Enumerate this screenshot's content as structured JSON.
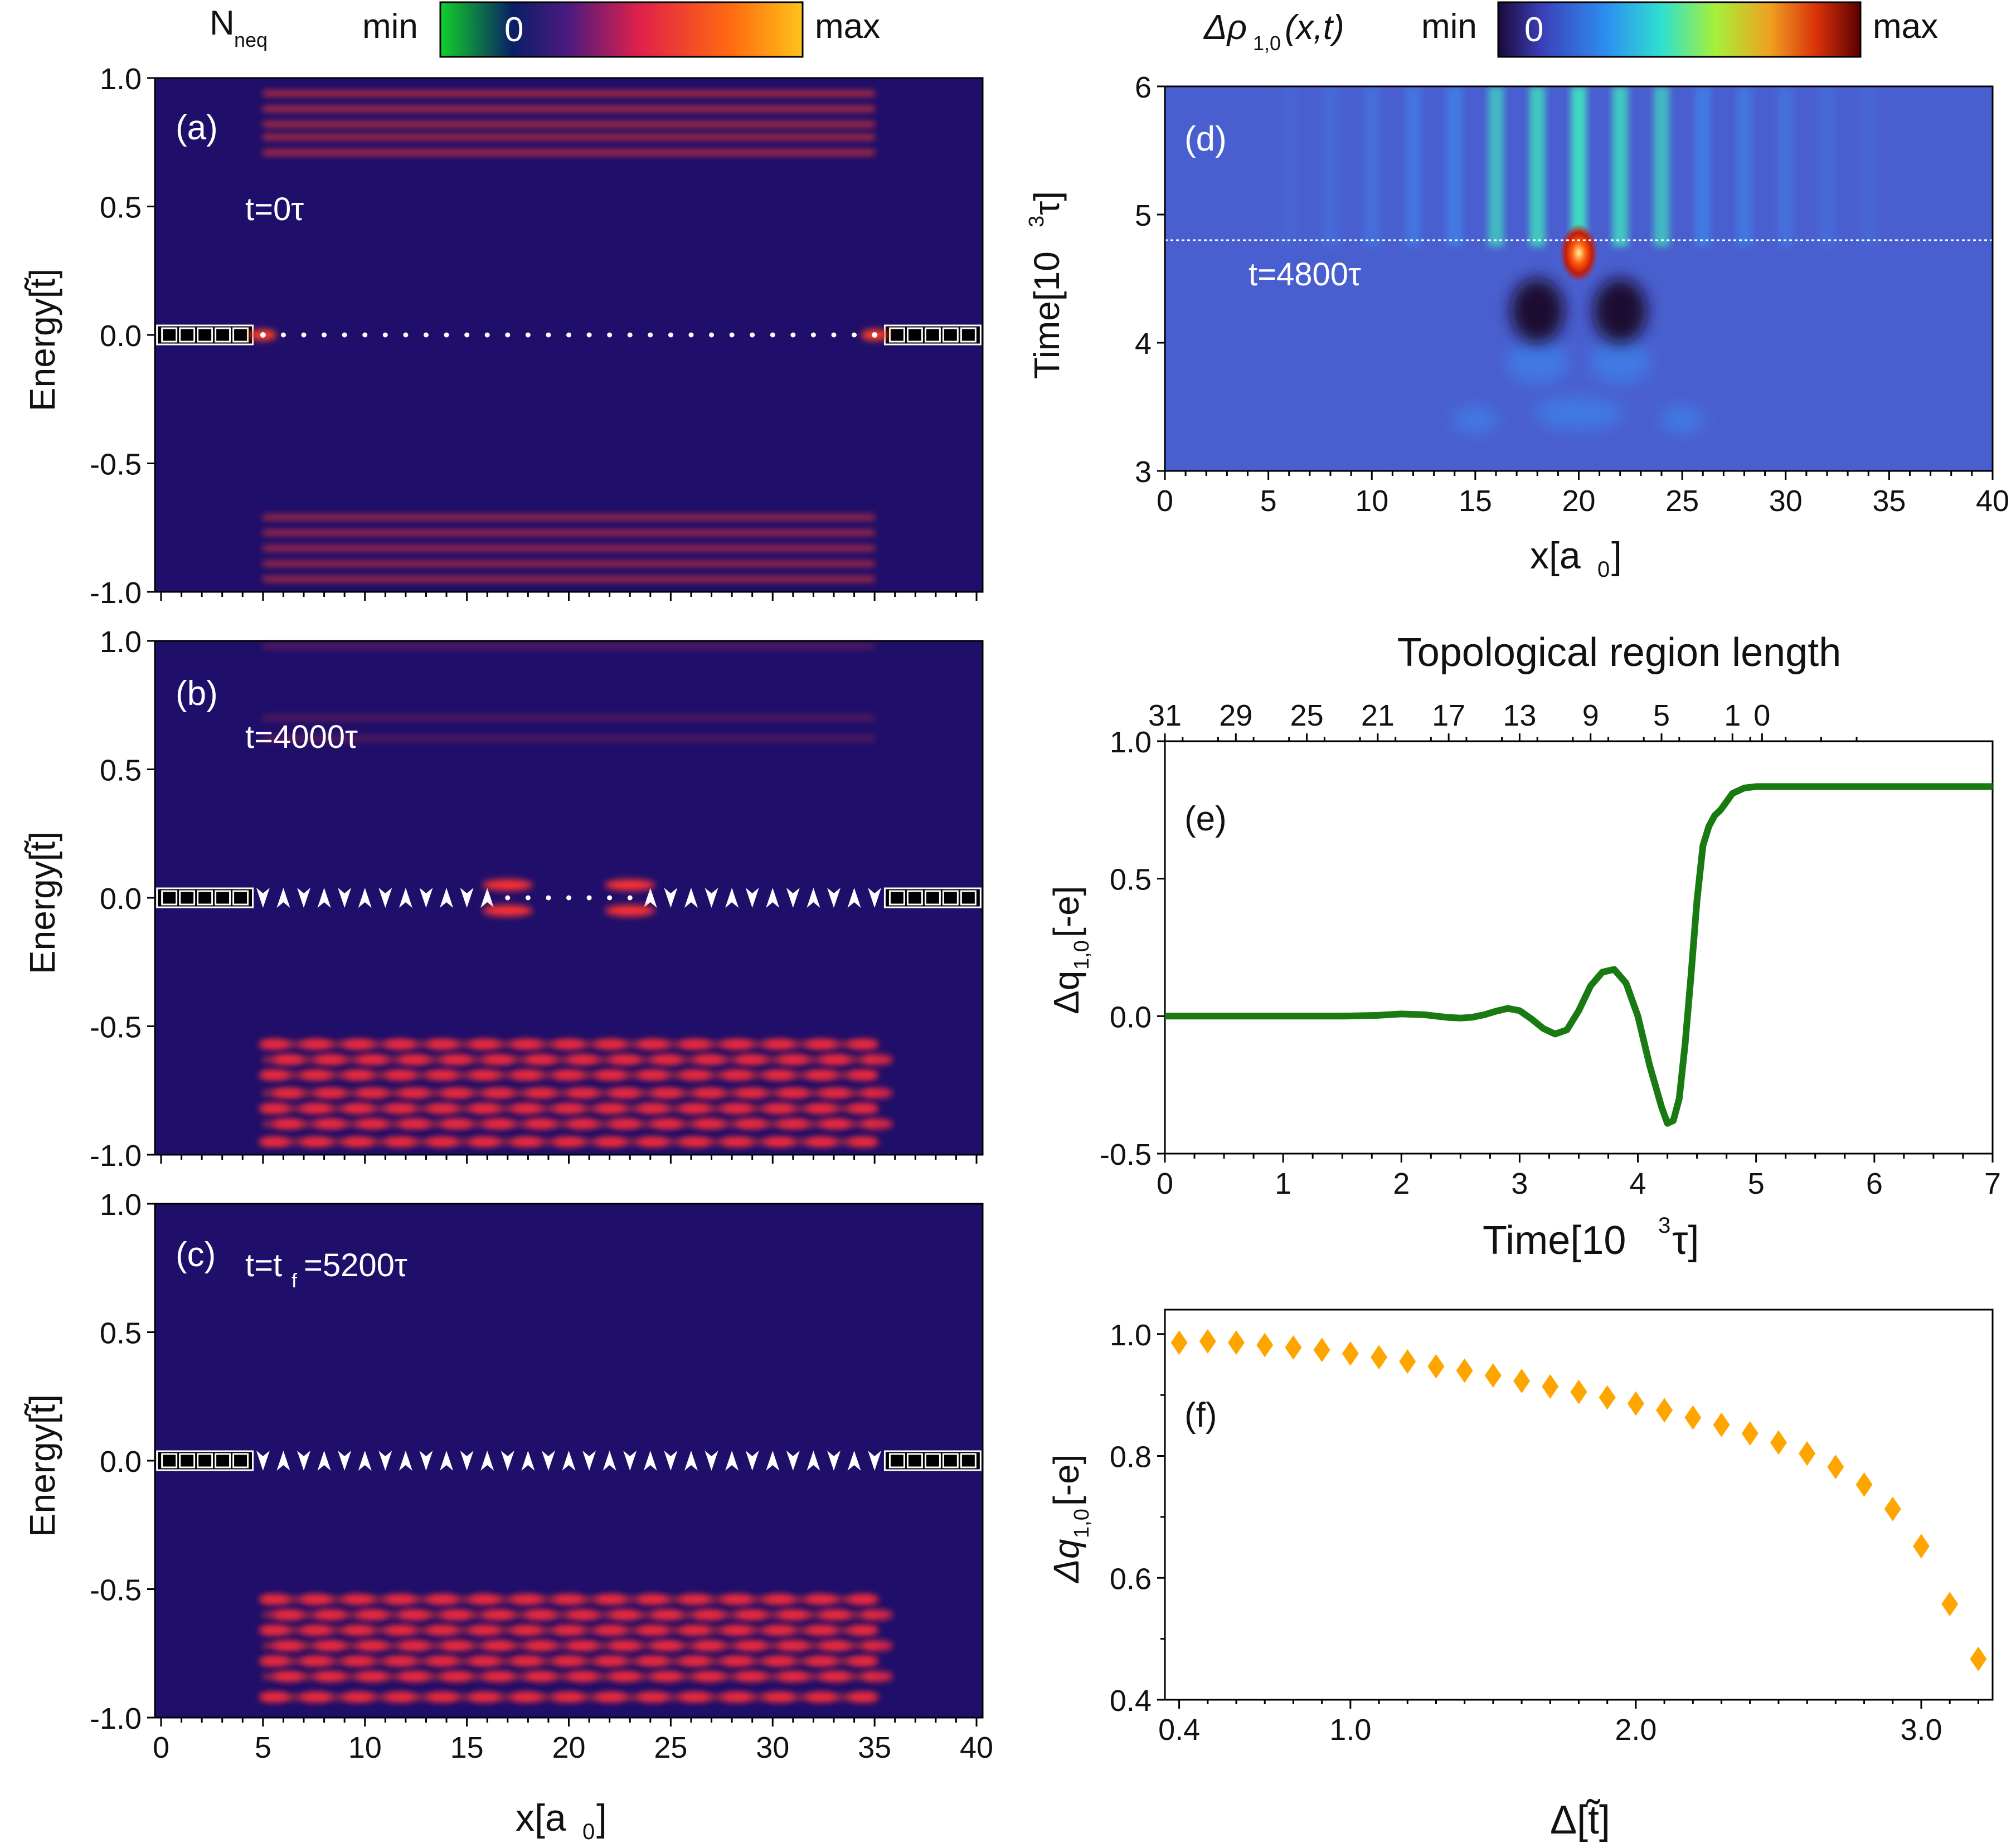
{
  "colors": {
    "bg": "#1f0f6a",
    "band": "#ff3a2a",
    "green": "#1a7a12",
    "orange": "#ffa500",
    "d_bg": "#4a5fcf"
  },
  "colorbar_left": {
    "label": "N",
    "label_sub": "neq",
    "min": "min",
    "zero": "0",
    "max": "max"
  },
  "colorbar_right": {
    "label": "Δρ",
    "label_sub": "1,0",
    "label_tail": "(x,t)",
    "min": "min",
    "zero": "0",
    "max": "max"
  },
  "panels_abc": {
    "xlabel": "x[a",
    "xlabel_sub": "0",
    "xlabel_tail": "]",
    "ylabel": "Energy[t̃]",
    "xticks": [
      "0",
      "5",
      "10",
      "15",
      "20",
      "25",
      "30",
      "35",
      "40"
    ],
    "yticks": [
      "1.0",
      "0.5",
      "0.0",
      "-0.5",
      "-1.0"
    ],
    "a": {
      "tag": "(a)",
      "time": "t=0τ"
    },
    "b": {
      "tag": "(b)",
      "time": "t=4000τ"
    },
    "c": {
      "tag": "(c)",
      "time_pre": "t=t",
      "time_sub": "f",
      "time_post": "=5200τ"
    }
  },
  "chart_data": [
    {
      "id": "a",
      "type": "heatmap",
      "title": "t=0τ",
      "xlabel": "x[a0]",
      "ylabel": "Energy[t̃]",
      "xlim": [
        0,
        40
      ],
      "ylim": [
        -1,
        1
      ],
      "bands_upper": [
        0.94,
        0.88,
        0.82,
        0.77,
        0.71
      ],
      "bands_lower": [
        -0.71,
        -0.77,
        -0.83,
        -0.89,
        -0.95
      ],
      "band_xrange": [
        5,
        35
      ],
      "edge_modes": [
        5,
        35
      ]
    },
    {
      "id": "b",
      "type": "heatmap",
      "title": "t=4000τ",
      "xlabel": "x[a0]",
      "ylabel": "Energy[t̃]",
      "xlim": [
        0,
        40
      ],
      "ylim": [
        -1,
        1
      ],
      "bands_upper": [
        0.98,
        0.7,
        0.62
      ],
      "bands_lower": [
        -0.57,
        -0.63,
        -0.69,
        -0.76,
        -0.82,
        -0.88,
        -0.95
      ],
      "band_xrange": [
        5,
        35
      ],
      "zero_modes": [
        17,
        23
      ]
    },
    {
      "id": "c",
      "type": "heatmap",
      "title": "t=tf=5200τ",
      "xlabel": "x[a0]",
      "ylabel": "Energy[t̃]",
      "xlim": [
        0,
        40
      ],
      "ylim": [
        -1,
        1
      ],
      "bands_lower": [
        -0.54,
        -0.6,
        -0.66,
        -0.72,
        -0.78,
        -0.84,
        -0.92
      ],
      "band_xrange": [
        5,
        35
      ]
    },
    {
      "id": "d",
      "type": "heatmap",
      "tag": "(d)",
      "annotation": "t=4800τ",
      "xlabel": "x[a0]",
      "ylabel": "Time[10^3τ]",
      "xlim": [
        0,
        40
      ],
      "ylim": [
        3,
        6
      ],
      "xticks": [
        "0",
        "5",
        "10",
        "15",
        "20",
        "25",
        "30",
        "35",
        "40"
      ],
      "yticks": [
        "3",
        "4",
        "5",
        "6"
      ],
      "line_t": 4.8,
      "peak": {
        "x": 20,
        "t": 4.7
      },
      "dips": [
        {
          "x": 18,
          "t": 4.25
        },
        {
          "x": 22,
          "t": 4.25
        }
      ]
    },
    {
      "id": "e",
      "type": "line",
      "tag": "(e)",
      "xlabel": "Time[10^3τ]",
      "ylabel": "Δq1,0[-e]",
      "top_axis_label": "Topological region length",
      "xlim": [
        0,
        7
      ],
      "ylim": [
        -0.5,
        1.0
      ],
      "top_ticks": [
        {
          "label": "31",
          "t": 0.0
        },
        {
          "label": "29",
          "t": 0.6
        },
        {
          "label": "25",
          "t": 1.2
        },
        {
          "label": "21",
          "t": 1.8
        },
        {
          "label": "17",
          "t": 2.4
        },
        {
          "label": "13",
          "t": 3.0
        },
        {
          "label": "9",
          "t": 3.6
        },
        {
          "label": "5",
          "t": 4.2
        },
        {
          "label": "1",
          "t": 4.8
        },
        {
          "label": "0",
          "t": 5.05
        }
      ],
      "x": [
        0,
        0.5,
        1.0,
        1.5,
        1.8,
        2.0,
        2.2,
        2.4,
        2.5,
        2.6,
        2.7,
        2.8,
        2.9,
        3.0,
        3.1,
        3.2,
        3.3,
        3.4,
        3.5,
        3.6,
        3.7,
        3.8,
        3.9,
        4.0,
        4.1,
        4.2,
        4.25,
        4.3,
        4.35,
        4.4,
        4.45,
        4.5,
        4.55,
        4.6,
        4.65,
        4.7,
        4.75,
        4.8,
        4.9,
        5.0,
        5.5,
        6.0,
        6.5,
        7.0
      ],
      "y": [
        0,
        0,
        0,
        0,
        0.003,
        0.008,
        0.005,
        -0.005,
        -0.007,
        -0.004,
        0.005,
        0.018,
        0.028,
        0.02,
        -0.01,
        -0.045,
        -0.065,
        -0.05,
        0.02,
        0.11,
        0.16,
        0.17,
        0.12,
        0.0,
        -0.18,
        -0.33,
        -0.39,
        -0.38,
        -0.3,
        -0.1,
        0.15,
        0.42,
        0.62,
        0.69,
        0.73,
        0.75,
        0.78,
        0.81,
        0.83,
        0.835,
        0.835,
        0.835,
        0.835,
        0.835
      ]
    },
    {
      "id": "f",
      "type": "scatter",
      "tag": "(f)",
      "xlabel": "Δ[t̃]",
      "ylabel": "Δq1,0[-e]",
      "xlim": [
        0.35,
        3.25
      ],
      "ylim": [
        0.4,
        1.04
      ],
      "x": [
        0.4,
        0.5,
        0.6,
        0.7,
        0.8,
        0.9,
        1.0,
        1.1,
        1.2,
        1.3,
        1.4,
        1.5,
        1.6,
        1.7,
        1.8,
        1.9,
        2.0,
        2.1,
        2.2,
        2.3,
        2.4,
        2.5,
        2.6,
        2.7,
        2.8,
        2.9,
        3.0,
        3.1,
        3.2
      ],
      "y": [
        0.986,
        0.988,
        0.986,
        0.982,
        0.978,
        0.974,
        0.968,
        0.962,
        0.955,
        0.947,
        0.94,
        0.932,
        0.923,
        0.914,
        0.905,
        0.896,
        0.886,
        0.875,
        0.863,
        0.851,
        0.837,
        0.822,
        0.804,
        0.782,
        0.753,
        0.713,
        0.652,
        0.557,
        0.467
      ]
    }
  ],
  "panel_e": {
    "tag": "(e)",
    "top_label": "Topological region length",
    "xlabel_pre": "Time[10",
    "xlabel_sup": "3",
    "xlabel_post": "τ]",
    "ylabel_pre": "Δq",
    "ylabel_sub": "1,0",
    "ylabel_post": "[-e]",
    "xticks": [
      "0",
      "1",
      "2",
      "3",
      "4",
      "5",
      "6",
      "7"
    ],
    "yticks": [
      "1.0",
      "0.5",
      "0.0",
      "-0.5"
    ]
  },
  "panel_d": {
    "tag": "(d)",
    "annotation": "t=4800τ",
    "ylabel_pre": "Time[10",
    "ylabel_sup": "3",
    "ylabel_post": "τ]",
    "xlabel_pre": "x[a",
    "xlabel_sub": "0",
    "xlabel_post": "]"
  },
  "panel_f": {
    "tag": "(f)",
    "xlabel": "Δ[t̃]",
    "ylabel_pre": "Δq",
    "ylabel_sub": "1,0",
    "ylabel_post": "[-e]",
    "xticks": [
      "0.4",
      "1.0",
      "2.0",
      "3.0"
    ],
    "yticks": [
      "1.0",
      "0.8",
      "0.6",
      "0.4"
    ]
  }
}
